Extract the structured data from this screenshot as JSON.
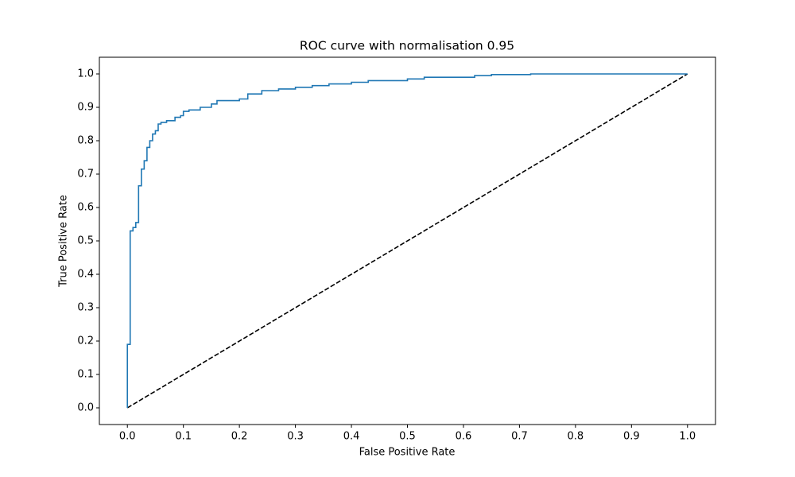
{
  "chart_data": {
    "type": "line",
    "title": "ROC curve with normalisation 0.95",
    "xlabel": "False Positive Rate",
    "ylabel": "True Positive Rate",
    "xlim": [
      -0.05,
      1.05
    ],
    "ylim": [
      -0.05,
      1.05
    ],
    "xticks": [
      {
        "value": 0,
        "label": "0.0"
      },
      0.1,
      0.2,
      0.3,
      0.4,
      0.5,
      0.6,
      0.7,
      0.8,
      0.9,
      {
        "value": 1,
        "label": "1.0"
      }
    ],
    "yticks": [
      {
        "value": 0,
        "label": "0.0"
      },
      0.1,
      0.2,
      0.3,
      0.4,
      0.5,
      0.6,
      0.7,
      0.8,
      0.9,
      {
        "value": 1,
        "label": "1.0"
      }
    ],
    "series": [
      {
        "color": "#1f77b4",
        "dash": "solid",
        "x": [
          0,
          0,
          0.005,
          0.005,
          0.01,
          0.01,
          0.015,
          0.015,
          0.02,
          0.02,
          0.025,
          0.025,
          0.03,
          0.03,
          0.035,
          0.035,
          0.04,
          0.04,
          0.045,
          0.045,
          0.05,
          0.05,
          0.055,
          0.055,
          0.06,
          0.06,
          0.07,
          0.07,
          0.085,
          0.085,
          0.095,
          0.095,
          0.1,
          0.1,
          0.11,
          0.11,
          0.13,
          0.13,
          0.15,
          0.15,
          0.16,
          0.16,
          0.2,
          0.2,
          0.215,
          0.215,
          0.24,
          0.24,
          0.27,
          0.27,
          0.3,
          0.3,
          0.33,
          0.33,
          0.36,
          0.36,
          0.4,
          0.4,
          0.43,
          0.43,
          0.5,
          0.5,
          0.53,
          0.53,
          0.62,
          0.62,
          0.65,
          0.65,
          0.72,
          0.72,
          1.0
        ],
        "values": [
          0,
          0.19,
          0.19,
          0.53,
          0.53,
          0.54,
          0.54,
          0.555,
          0.555,
          0.665,
          0.665,
          0.715,
          0.715,
          0.74,
          0.74,
          0.78,
          0.78,
          0.8,
          0.8,
          0.82,
          0.82,
          0.83,
          0.83,
          0.85,
          0.85,
          0.855,
          0.855,
          0.86,
          0.86,
          0.87,
          0.87,
          0.875,
          0.875,
          0.888,
          0.888,
          0.892,
          0.892,
          0.9,
          0.9,
          0.91,
          0.91,
          0.92,
          0.92,
          0.925,
          0.925,
          0.94,
          0.94,
          0.95,
          0.95,
          0.955,
          0.955,
          0.96,
          0.96,
          0.965,
          0.965,
          0.97,
          0.97,
          0.975,
          0.975,
          0.98,
          0.98,
          0.985,
          0.985,
          0.99,
          0.99,
          0.995,
          0.995,
          0.998,
          0.998,
          1.0,
          1.0
        ]
      },
      {
        "color": "#000000",
        "dash": "dashed",
        "x": [
          0,
          1
        ],
        "values": [
          0,
          1
        ]
      }
    ]
  }
}
